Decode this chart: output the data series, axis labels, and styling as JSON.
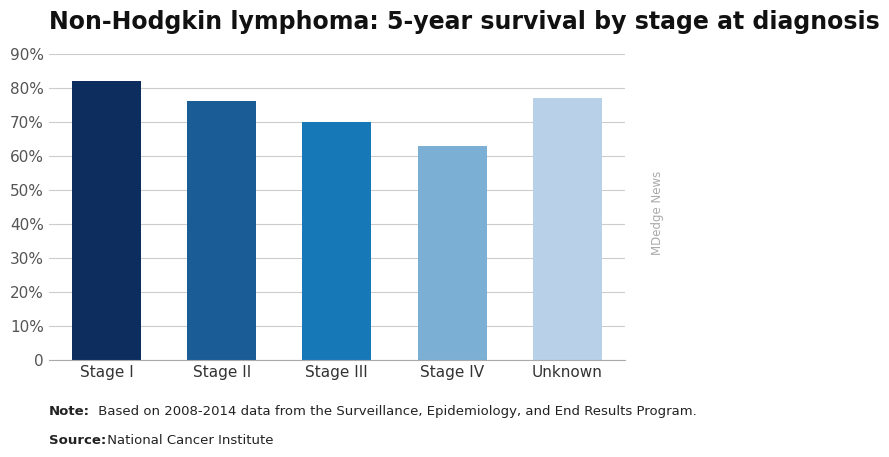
{
  "title": "Non-Hodgkin lymphoma: 5-year survival by stage at diagnosis",
  "categories": [
    "Stage I",
    "Stage II",
    "Stage III",
    "Stage IV",
    "Unknown"
  ],
  "values": [
    82,
    76,
    70,
    63,
    77
  ],
  "bar_colors": [
    "#0d2d5e",
    "#1a5c96",
    "#1778b8",
    "#7bafd4",
    "#b8d0e8"
  ],
  "ylim": [
    0,
    90
  ],
  "yticks": [
    0,
    10,
    20,
    30,
    40,
    50,
    60,
    70,
    80,
    90
  ],
  "background_color": "#ffffff",
  "grid_color": "#cccccc",
  "title_fontsize": 17,
  "tick_fontsize": 11,
  "note_bold": "Note:",
  "note_rest": " Based on 2008-2014 data from the Surveillance, Epidemiology, and End Results Program.",
  "source_bold": "Source:",
  "source_rest": " National Cancer Institute",
  "watermark": "MDedge News",
  "footnote_fontsize": 9.5
}
